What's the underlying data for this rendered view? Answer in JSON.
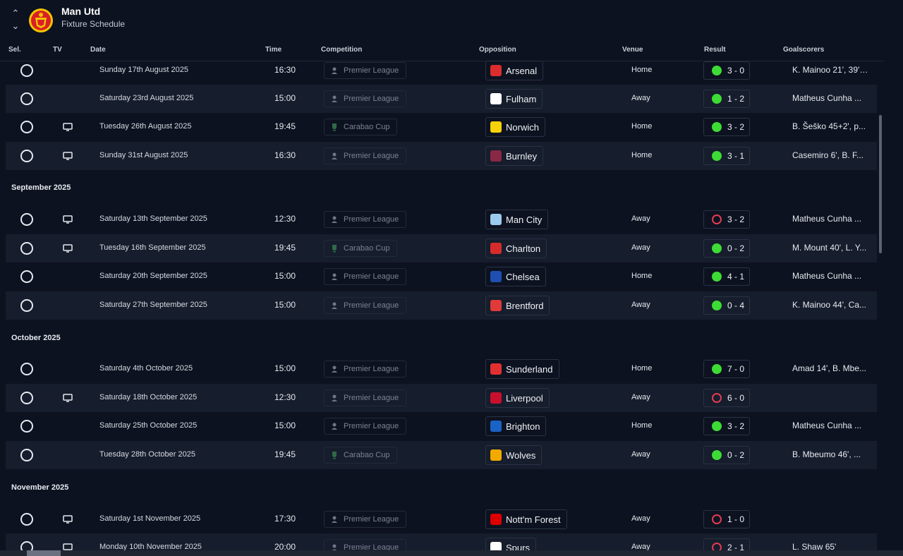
{
  "header": {
    "club_name": "Man Utd",
    "subtitle": "Fixture Schedule"
  },
  "columns": {
    "sel": "Sel.",
    "tv": "TV",
    "date": "Date",
    "time": "Time",
    "competition": "Competition",
    "opposition": "Opposition",
    "venue": "Venue",
    "result": "Result",
    "goalscorers": "Goalscorers"
  },
  "months": [
    "September 2025",
    "October 2025",
    "November 2025"
  ],
  "competitions": {
    "pl": {
      "label": "Premier League",
      "icon": "premier-league-icon"
    },
    "cc": {
      "label": "Carabao Cup",
      "icon": "carabao-cup-icon"
    }
  },
  "fixtures": [
    {
      "date": "Sunday 17th August 2025",
      "time": "16:30",
      "tv": false,
      "competition": "Premier League",
      "comp_icon": "premier-league-icon",
      "opponent": "Arsenal",
      "badge_color": "#db2d2d",
      "venue": "Home",
      "result": "3 - 0",
      "outcome": "win",
      "scorers": "K. Mainoo 21', 39',..."
    },
    {
      "date": "Saturday 23rd August 2025",
      "time": "15:00",
      "tv": false,
      "competition": "Premier League",
      "comp_icon": "premier-league-icon",
      "opponent": "Fulham",
      "badge_color": "#ffffff",
      "venue": "Away",
      "result": "1 - 2",
      "outcome": "win",
      "scorers": "Matheus Cunha ..."
    },
    {
      "date": "Tuesday 26th August 2025",
      "time": "19:45",
      "tv": true,
      "competition": "Carabao Cup",
      "comp_icon": "carabao-cup-icon",
      "opponent": "Norwich",
      "badge_color": "#f5d20a",
      "venue": "Home",
      "result": "3 - 2",
      "outcome": "win",
      "scorers": "B. Šeško 45+2', p..."
    },
    {
      "date": "Sunday 31st August 2025",
      "time": "16:30",
      "tv": true,
      "competition": "Premier League",
      "comp_icon": "premier-league-icon",
      "opponent": "Burnley",
      "badge_color": "#8a2745",
      "venue": "Home",
      "result": "3 - 1",
      "outcome": "win",
      "scorers": "Casemiro 6', B. F..."
    },
    {
      "date": "Saturday 13th September 2025",
      "time": "12:30",
      "tv": true,
      "competition": "Premier League",
      "comp_icon": "premier-league-icon",
      "opponent": "Man City",
      "badge_color": "#9ccbf0",
      "venue": "Away",
      "result": "3 - 2",
      "outcome": "loss",
      "scorers": "Matheus Cunha ..."
    },
    {
      "date": "Tuesday 16th September 2025",
      "time": "19:45",
      "tv": true,
      "competition": "Carabao Cup",
      "comp_icon": "carabao-cup-icon",
      "opponent": "Charlton",
      "badge_color": "#d62b2b",
      "venue": "Away",
      "result": "0 - 2",
      "outcome": "win",
      "scorers": "M. Mount 40', L. Y..."
    },
    {
      "date": "Saturday 20th September 2025",
      "time": "15:00",
      "tv": false,
      "competition": "Premier League",
      "comp_icon": "premier-league-icon",
      "opponent": "Chelsea",
      "badge_color": "#1f4fb0",
      "venue": "Home",
      "result": "4 - 1",
      "outcome": "win",
      "scorers": "Matheus Cunha ..."
    },
    {
      "date": "Saturday 27th September 2025",
      "time": "15:00",
      "tv": false,
      "competition": "Premier League",
      "comp_icon": "premier-league-icon",
      "opponent": "Brentford",
      "badge_color": "#e03a3a",
      "venue": "Away",
      "result": "0 - 4",
      "outcome": "win",
      "scorers": "K. Mainoo 44', Ca..."
    },
    {
      "date": "Saturday 4th October 2025",
      "time": "15:00",
      "tv": false,
      "competition": "Premier League",
      "comp_icon": "premier-league-icon",
      "opponent": "Sunderland",
      "badge_color": "#e23030",
      "venue": "Home",
      "result": "7 - 0",
      "outcome": "win",
      "scorers": "Amad 14', B. Mbe..."
    },
    {
      "date": "Saturday 18th October 2025",
      "time": "12:30",
      "tv": true,
      "competition": "Premier League",
      "comp_icon": "premier-league-icon",
      "opponent": "Liverpool",
      "badge_color": "#c8102e",
      "venue": "Away",
      "result": "6 - 0",
      "outcome": "loss",
      "scorers": ""
    },
    {
      "date": "Saturday 25th October 2025",
      "time": "15:00",
      "tv": false,
      "competition": "Premier League",
      "comp_icon": "premier-league-icon",
      "opponent": "Brighton",
      "badge_color": "#1a63c6",
      "venue": "Home",
      "result": "3 - 2",
      "outcome": "win",
      "scorers": "Matheus Cunha ..."
    },
    {
      "date": "Tuesday 28th October 2025",
      "time": "19:45",
      "tv": false,
      "competition": "Carabao Cup",
      "comp_icon": "carabao-cup-icon",
      "opponent": "Wolves",
      "badge_color": "#f2a900",
      "venue": "Away",
      "result": "0 - 2",
      "outcome": "win",
      "scorers": "B. Mbeumo 46', ..."
    },
    {
      "date": "Saturday 1st November 2025",
      "time": "17:30",
      "tv": true,
      "competition": "Premier League",
      "comp_icon": "premier-league-icon",
      "opponent": "Nott'm Forest",
      "badge_color": "#dd0000",
      "venue": "Away",
      "result": "1 - 0",
      "outcome": "loss",
      "scorers": ""
    },
    {
      "date": "Monday 10th November 2025",
      "time": "20:00",
      "tv": true,
      "competition": "Premier League",
      "comp_icon": "premier-league-icon",
      "opponent": "Spurs",
      "badge_color": "#ffffff",
      "venue": "Away",
      "result": "2 - 1",
      "outcome": "loss",
      "scorers": "L. Shaw 65'"
    }
  ]
}
